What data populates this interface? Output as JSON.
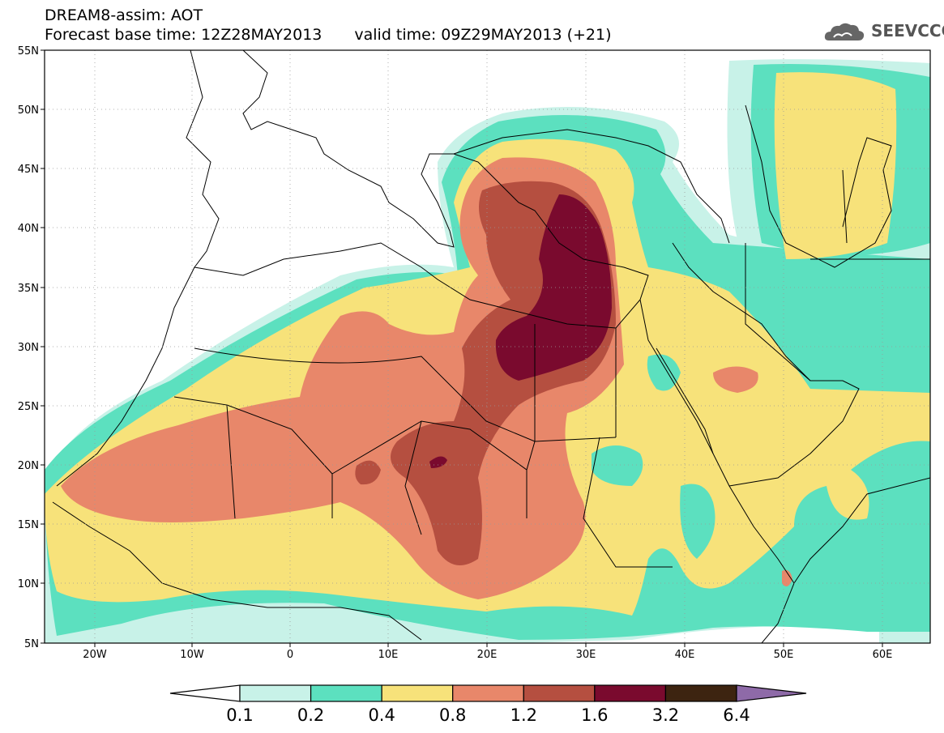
{
  "header": {
    "model_title": "DREAM8-assim: AOT",
    "base_time_label": "Forecast base time: 12Z28MAY2013",
    "valid_time_label": "valid time: 09Z29MAY2013 (+21)"
  },
  "logo": {
    "text": "SEEVCCC",
    "icon": "cloud-icon"
  },
  "axes": {
    "lat_labels": [
      "55N",
      "50N",
      "45N",
      "40N",
      "35N",
      "30N",
      "25N",
      "20N",
      "15N",
      "10N",
      "5N"
    ],
    "lon_labels": [
      "20W",
      "10W",
      "0",
      "10E",
      "20E",
      "30E",
      "40E",
      "50E",
      "60E"
    ]
  },
  "colorbar": {
    "labels": [
      "0.1",
      "0.2",
      "0.4",
      "0.8",
      "1.2",
      "1.6",
      "3.2",
      "6.4"
    ],
    "colors": [
      "#ffffff",
      "#c8f2e8",
      "#5ce0bf",
      "#f7e27a",
      "#e8876a",
      "#b54f40",
      "#7a0a2e",
      "#3d2410",
      "#8e6aa8"
    ]
  },
  "field_colors": {
    "c01": "#c8f2e8",
    "c02": "#5ce0bf",
    "c04": "#f7e27a",
    "c08": "#e8876a",
    "c12": "#b54f40",
    "c16": "#7a0a2e"
  }
}
